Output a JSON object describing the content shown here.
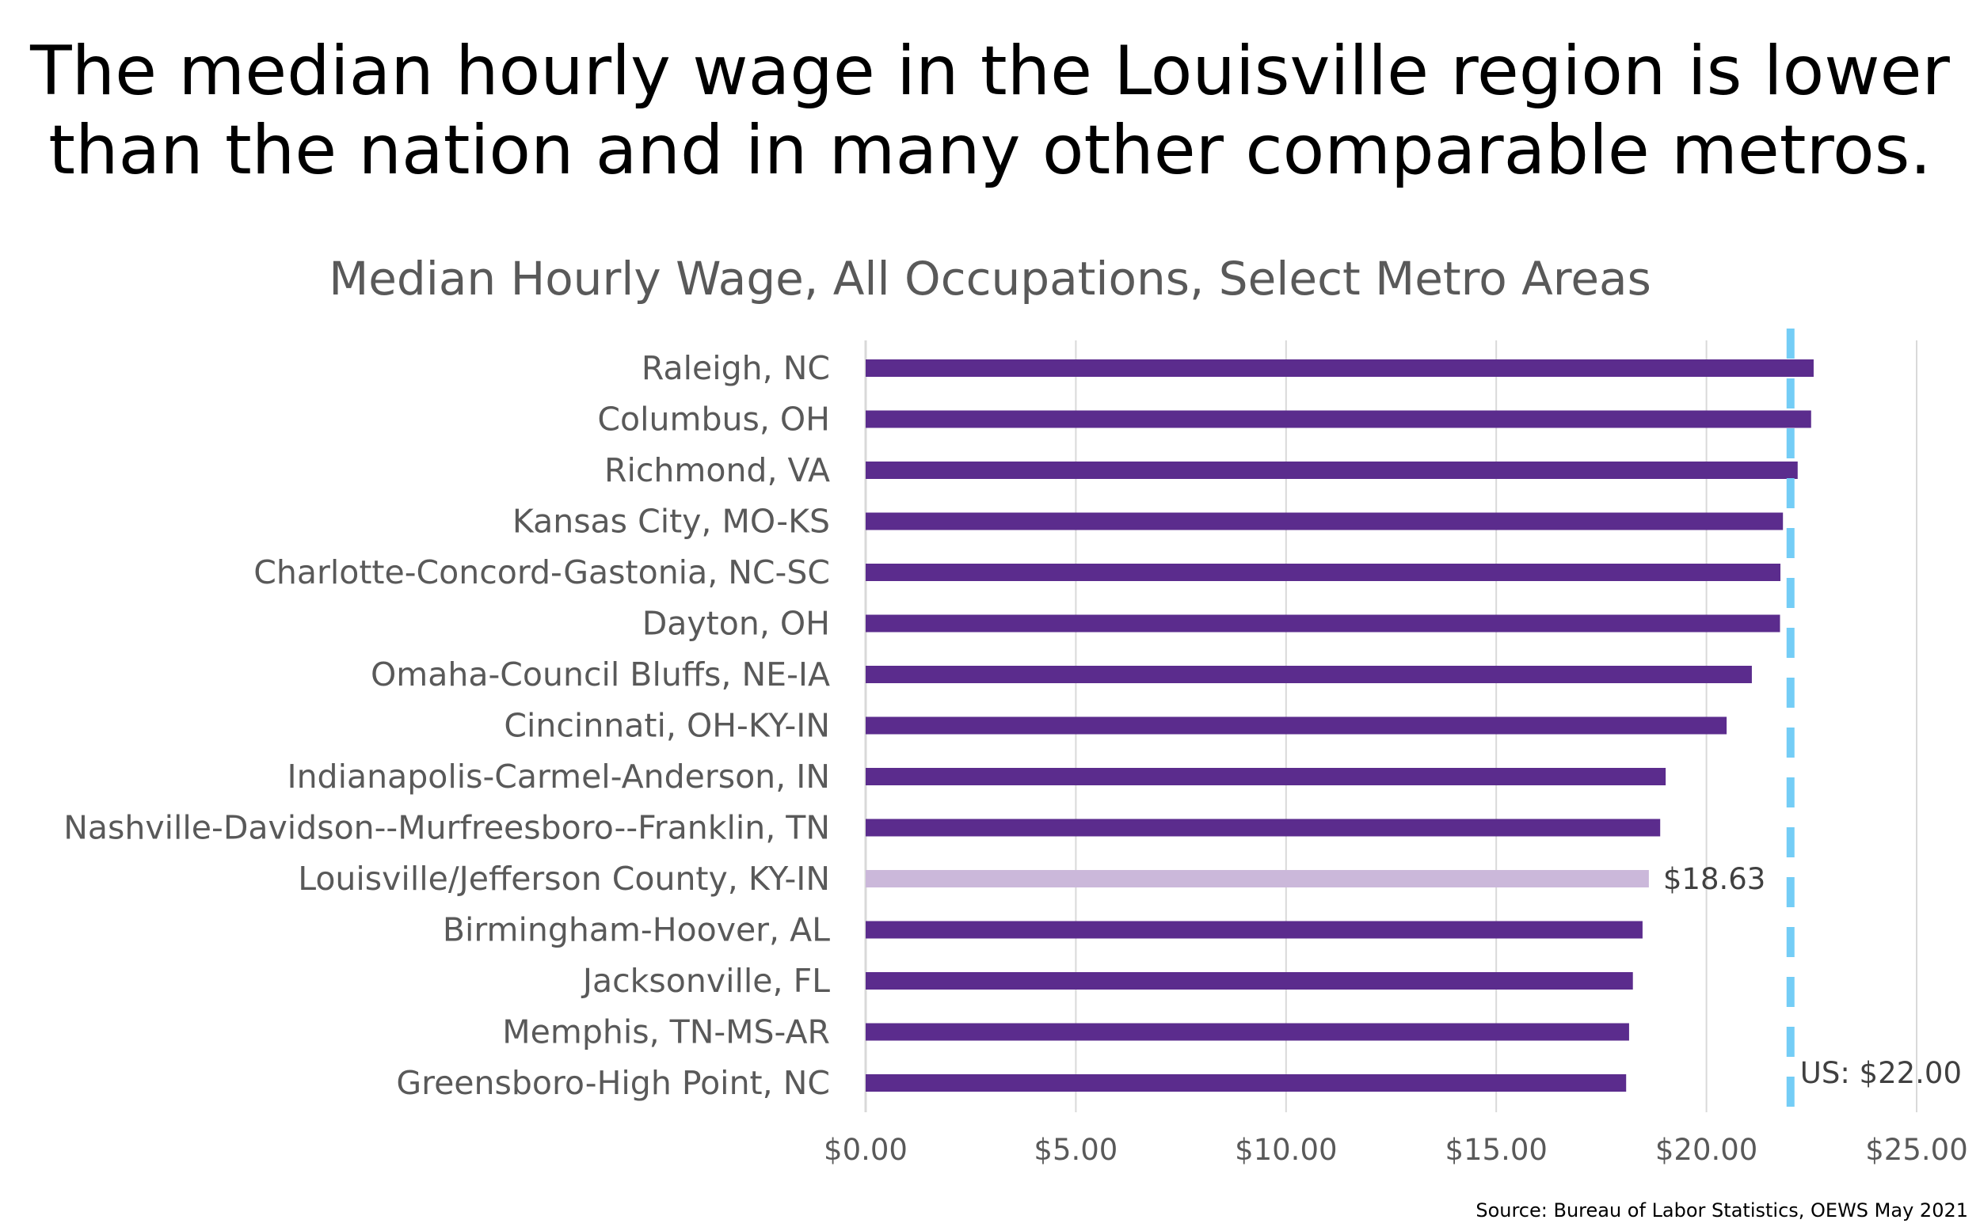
{
  "headline": {
    "line1": "The median hourly wage in the Louisville region is lower",
    "line2": "than the nation and in many other comparable metros."
  },
  "source": "Source: Bureau of Labor Statistics,  OEWS May 2021",
  "colors": {
    "bar": "#5b2c8d",
    "highlight_bar": "#cbb8da",
    "reference_line": "#74cdf6",
    "gridline": "#d9d9d9"
  },
  "chart_data": {
    "type": "bar",
    "orientation": "horizontal",
    "title": "Median Hourly Wage, All Occupations, Select Metro Areas",
    "xlabel": "",
    "ylabel": "",
    "categories": [
      "Raleigh, NC",
      "Columbus, OH",
      "Richmond, VA",
      "Kansas City, MO-KS",
      "Charlotte-Concord-Gastonia, NC-SC",
      "Dayton, OH",
      "Omaha-Council Bluffs, NE-IA",
      "Cincinnati, OH-KY-IN",
      "Indianapolis-Carmel-Anderson, IN",
      "Nashville-Davidson--Murfreesboro--Franklin, TN",
      "Louisville/Jefferson County, KY-IN",
      "Birmingham-Hoover, AL",
      "Jacksonville, FL",
      "Memphis, TN-MS-AR",
      "Greensboro-High Point, NC"
    ],
    "values": [
      22.55,
      22.49,
      22.17,
      21.82,
      21.76,
      21.75,
      21.08,
      20.48,
      19.03,
      18.9,
      18.63,
      18.48,
      18.25,
      18.16,
      18.09
    ],
    "highlight_category": "Louisville/Jefferson County, KY-IN",
    "data_labels": [
      {
        "category": "Louisville/Jefferson County, KY-IN",
        "text": "$18.63"
      }
    ],
    "reference_line": {
      "value": 22.0,
      "label": "US: $22.00",
      "style": "dashed"
    },
    "xlim": [
      0,
      25
    ],
    "xticks": [
      0,
      5,
      10,
      15,
      20,
      25
    ],
    "xtick_labels": [
      "$0.00",
      "$5.00",
      "$10.00",
      "$15.00",
      "$20.00",
      "$25.00"
    ],
    "grid": {
      "vertical": true,
      "horizontal": false
    },
    "legend": "none"
  }
}
